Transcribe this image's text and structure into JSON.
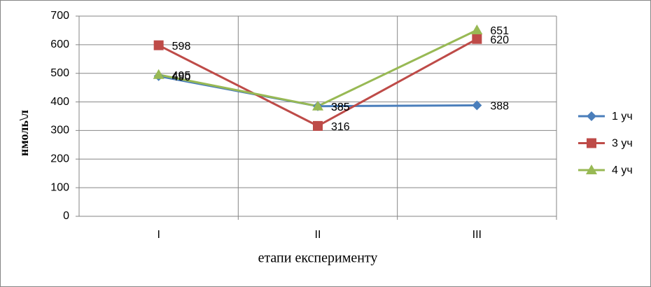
{
  "chart_data": {
    "type": "line",
    "y_label": "нмоль\\л",
    "x_label": "етапи експерименту",
    "categories": [
      "I",
      "II",
      "III"
    ],
    "series": [
      {
        "name": "1 уч",
        "color": "#4a7ebb",
        "marker": "diamond",
        "values": [
          490,
          385,
          388
        ]
      },
      {
        "name": "3 уч",
        "color": "#be4b48",
        "marker": "square",
        "values": [
          598,
          316,
          620
        ]
      },
      {
        "name": "4 уч",
        "color": "#98b954",
        "marker": "triangle",
        "values": [
          495,
          385,
          651
        ]
      }
    ],
    "ylim": [
      0,
      700
    ],
    "yticks": [
      0,
      100,
      200,
      300,
      400,
      500,
      600,
      700
    ],
    "grid": true,
    "legend": "right"
  }
}
